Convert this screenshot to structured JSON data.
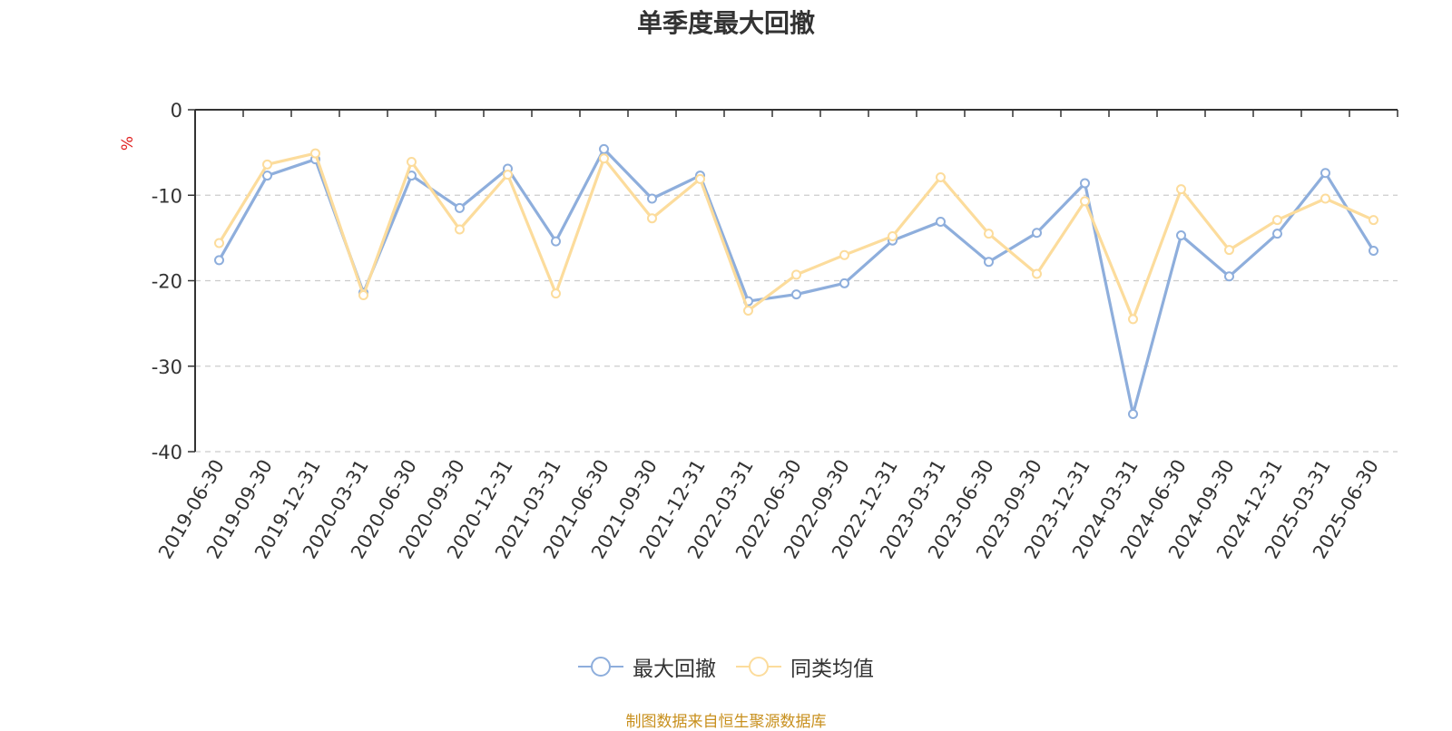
{
  "chart_data": {
    "type": "line",
    "title": "单季度最大回撤",
    "ylabel": "%",
    "xlabel": "",
    "ylim": [
      -40,
      0
    ],
    "yticks": [
      0,
      -10,
      -20,
      -30,
      -40
    ],
    "grid": true,
    "legend_position": "bottom-center",
    "categories": [
      "2019-06-30",
      "2019-09-30",
      "2019-12-31",
      "2020-03-31",
      "2020-06-30",
      "2020-09-30",
      "2020-12-31",
      "2021-03-31",
      "2021-06-30",
      "2021-09-30",
      "2021-12-31",
      "2022-03-31",
      "2022-06-30",
      "2022-09-30",
      "2022-12-31",
      "2023-03-31",
      "2023-06-30",
      "2023-09-30",
      "2023-12-31",
      "2024-03-31",
      "2024-06-30",
      "2024-09-30",
      "2024-12-31",
      "2025-03-31",
      "2025-06-30"
    ],
    "series": [
      {
        "name": "最大回撤",
        "color": "#8eaedc",
        "values": [
          -17.6,
          -7.7,
          -5.8,
          -21.4,
          -7.7,
          -11.5,
          -6.9,
          -15.4,
          -4.6,
          -10.4,
          -7.7,
          -22.4,
          -21.6,
          -20.3,
          -15.3,
          -13.1,
          -17.8,
          -14.4,
          -8.6,
          -35.6,
          -14.7,
          -19.5,
          -14.5,
          -7.4,
          -16.5
        ]
      },
      {
        "name": "同类均值",
        "color": "#fcdc9c",
        "values": [
          -15.6,
          -6.4,
          -5.1,
          -21.7,
          -6.1,
          -14.0,
          -7.6,
          -21.5,
          -5.7,
          -12.7,
          -8.1,
          -23.5,
          -19.3,
          -17.0,
          -14.8,
          -7.9,
          -14.5,
          -19.2,
          -10.7,
          -24.5,
          -9.3,
          -16.4,
          -12.9,
          -10.4,
          -12.9
        ]
      }
    ]
  },
  "source_note": "制图数据来自恒生聚源数据库"
}
